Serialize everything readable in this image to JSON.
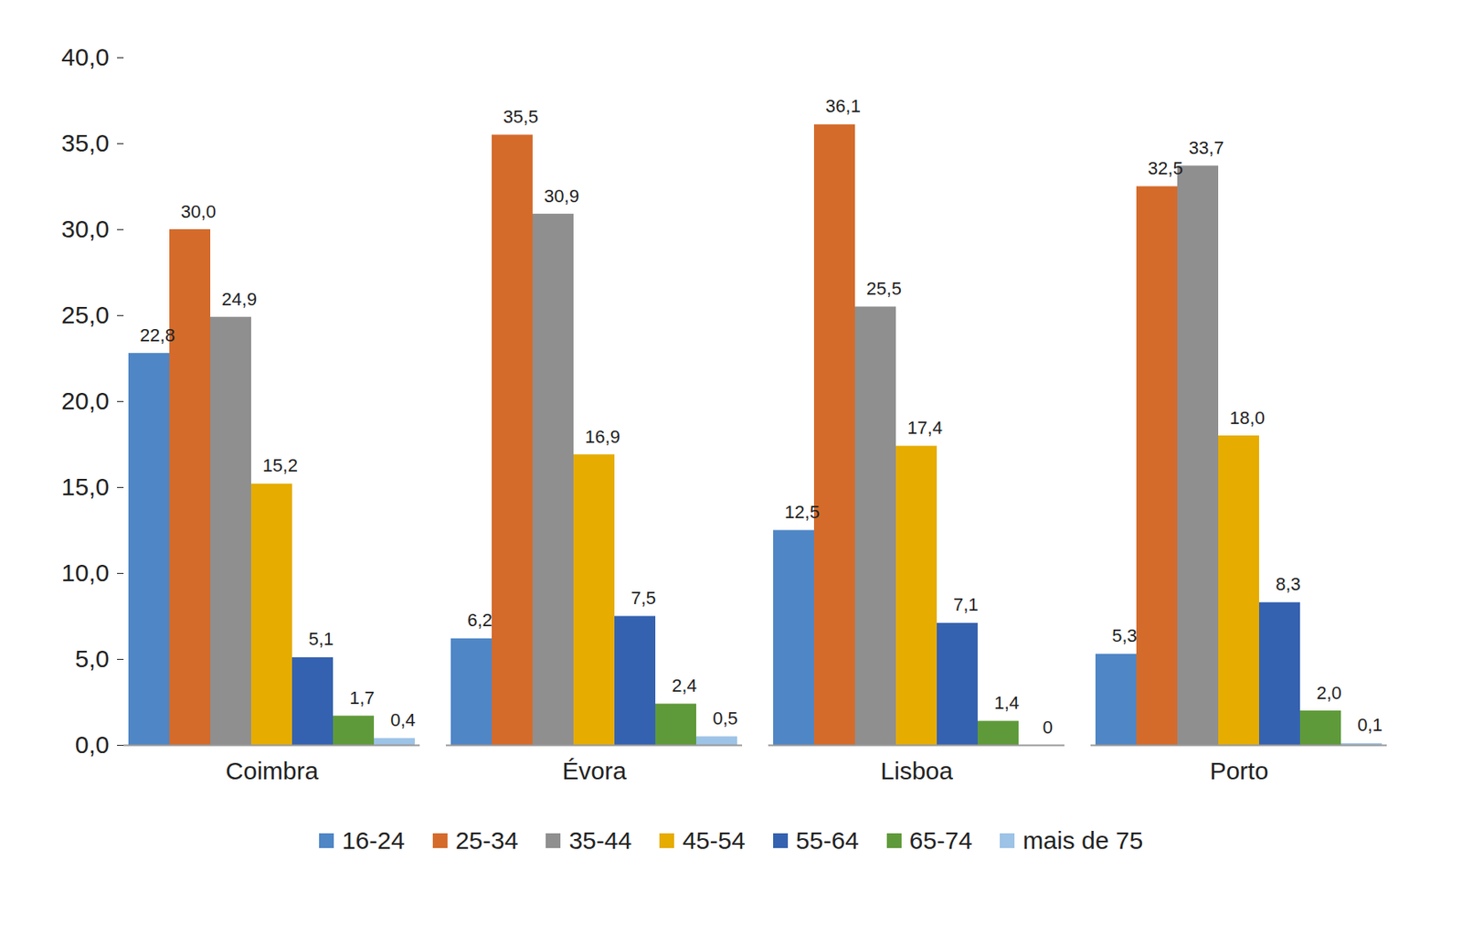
{
  "chart_data": {
    "type": "bar",
    "categories": [
      "Coimbra",
      "Évora",
      "Lisboa",
      "Porto"
    ],
    "series": [
      {
        "name": "16-24",
        "color": "#4f86c6",
        "values": [
          22.8,
          6.2,
          12.5,
          5.3
        ],
        "value_labels": [
          "22,8",
          "6,2",
          "12,5",
          "5,3"
        ]
      },
      {
        "name": "25-34",
        "color": "#d46b2b",
        "values": [
          30.0,
          35.5,
          36.1,
          32.5
        ],
        "value_labels": [
          "30,0",
          "35,5",
          "36,1",
          "32,5"
        ]
      },
      {
        "name": "35-44",
        "color": "#8f8f8f",
        "values": [
          24.9,
          30.9,
          25.5,
          33.7
        ],
        "value_labels": [
          "24,9",
          "30,9",
          "25,5",
          "33,7"
        ]
      },
      {
        "name": "45-54",
        "color": "#e6ac00",
        "values": [
          15.2,
          16.9,
          17.4,
          18.0
        ],
        "value_labels": [
          "15,2",
          "16,9",
          "17,4",
          "18,0"
        ]
      },
      {
        "name": "55-64",
        "color": "#3562b0",
        "values": [
          5.1,
          7.5,
          7.1,
          8.3
        ],
        "value_labels": [
          "5,1",
          "7,5",
          "7,1",
          "8,3"
        ]
      },
      {
        "name": "65-74",
        "color": "#5f9a3a",
        "values": [
          1.7,
          2.4,
          1.4,
          2.0
        ],
        "value_labels": [
          "1,7",
          "2,4",
          "1,4",
          "2,0"
        ]
      },
      {
        "name": "mais de 75",
        "color": "#9dc3e6",
        "values": [
          0.4,
          0.5,
          0,
          0.1
        ],
        "value_labels": [
          "0,4",
          "0,5",
          "0",
          "0,1"
        ]
      }
    ],
    "ylim": [
      0,
      40
    ],
    "yticks": [
      {
        "value": 0,
        "label": "0,0"
      },
      {
        "value": 5,
        "label": "5,0"
      },
      {
        "value": 10,
        "label": "10,0"
      },
      {
        "value": 15,
        "label": "15,0"
      },
      {
        "value": 20,
        "label": "20,0"
      },
      {
        "value": 25,
        "label": "25,0"
      },
      {
        "value": 30,
        "label": "30,0"
      },
      {
        "value": 35,
        "label": "35,0"
      },
      {
        "value": 40,
        "label": "40,0"
      }
    ],
    "grid": false,
    "legend": "bottom",
    "data_labels": true
  }
}
